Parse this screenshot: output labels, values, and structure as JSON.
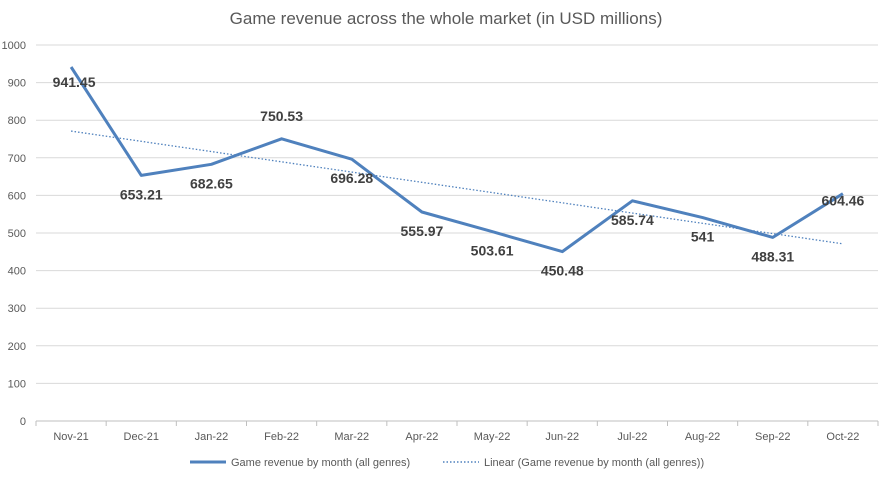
{
  "chart_data": {
    "type": "line",
    "title": "Game revenue across the whole market (in USD millions)",
    "xlabel": "",
    "ylabel": "",
    "categories": [
      "Nov-21",
      "Dec-21",
      "Jan-22",
      "Feb-22",
      "Mar-22",
      "Apr-22",
      "May-22",
      "Jun-22",
      "Jul-22",
      "Aug-22",
      "Sep-22",
      "Oct-22"
    ],
    "series": [
      {
        "name": "Game revenue by month (all genres)",
        "values": [
          941.45,
          653.21,
          682.65,
          750.53,
          696.28,
          555.97,
          503.61,
          450.48,
          585.74,
          541,
          488.31,
          604.46
        ],
        "labels": [
          "941.45",
          "653.21",
          "682.65",
          "750.53",
          "696.28",
          "555.97",
          "503.61",
          "450.48",
          "585.74",
          "541",
          "488.31",
          "604.46"
        ],
        "color": "#4f81bd",
        "style": "solid"
      }
    ],
    "trendline": {
      "name": "Linear (Game revenue by month (all genres))",
      "type": "linear",
      "color": "#4f81bd",
      "style": "dotted"
    },
    "ylim": [
      0,
      1000
    ],
    "yticks": [
      0,
      100,
      200,
      300,
      400,
      500,
      600,
      700,
      800,
      900,
      1000
    ],
    "grid": true,
    "legend_position": "bottom"
  }
}
